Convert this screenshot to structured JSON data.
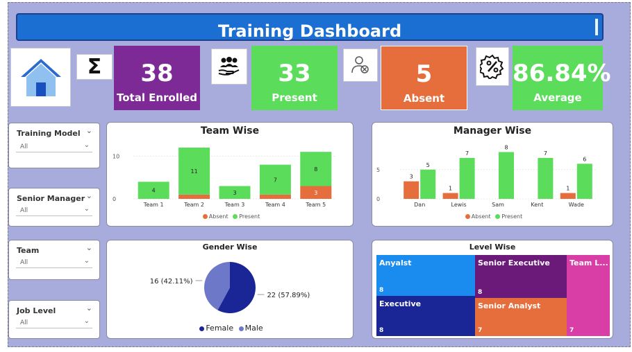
{
  "title": "Training Dashboard",
  "kpis": {
    "enrolled": {
      "value": "38",
      "label": "Total Enrolled",
      "color": "#7d2a96"
    },
    "present": {
      "value": "33",
      "label": "Present",
      "color": "#5bdc5b"
    },
    "absent": {
      "value": "5",
      "label": "Absent",
      "color": "#e66e3c"
    },
    "average": {
      "value": "86.84%",
      "label": "Average",
      "color": "#5bdc5b"
    }
  },
  "icons": {
    "home": "home-icon",
    "sum": "sigma-icon",
    "present": "team-hand-icon",
    "absent": "user-cancel-icon",
    "average": "percent-gear-icon"
  },
  "slicers": [
    {
      "label": "Training Model",
      "value": "All"
    },
    {
      "label": "Senior Manager",
      "value": "All"
    },
    {
      "label": "Team",
      "value": "All"
    },
    {
      "label": "Job Level",
      "value": "All"
    }
  ],
  "legend": {
    "absent": "Absent",
    "present": "Present"
  },
  "colors": {
    "absent": "#e66e3c",
    "present": "#5bdc5b",
    "female": "#1a2596",
    "male": "#6d78c9"
  },
  "chart_data": [
    {
      "type": "bar",
      "title": "Team Wise",
      "categories": [
        "Team 1",
        "Team 2",
        "Team 3",
        "Team 4",
        "Team 5"
      ],
      "series": [
        {
          "name": "Absent",
          "values": [
            0,
            1,
            0,
            1,
            3
          ],
          "labels": [
            "",
            "",
            "",
            "",
            "3"
          ]
        },
        {
          "name": "Present",
          "values": [
            4,
            11,
            3,
            7,
            8
          ],
          "labels": [
            "4",
            "11",
            "3",
            "7",
            "8"
          ]
        }
      ],
      "stacked": true,
      "yticks": [
        "0",
        "10"
      ],
      "ylim": [
        0,
        12
      ],
      "legend": "bottom"
    },
    {
      "type": "bar",
      "title": "Manager Wise",
      "categories": [
        "Dan",
        "Lewis",
        "Sam",
        "Kent",
        "Wade"
      ],
      "series": [
        {
          "name": "Absent",
          "values": [
            3,
            1,
            0,
            0,
            1
          ],
          "labels": [
            "3",
            "1",
            "",
            "",
            "1"
          ]
        },
        {
          "name": "Present",
          "values": [
            5,
            7,
            8,
            7,
            6
          ],
          "labels": [
            "5",
            "7",
            "8",
            "7",
            "6"
          ]
        }
      ],
      "stacked": false,
      "yticks": [
        "0",
        "5"
      ],
      "ylim": [
        0,
        9
      ],
      "legend": "bottom"
    },
    {
      "type": "pie",
      "title": "Gender Wise",
      "slices": [
        {
          "name": "Female",
          "value": 22,
          "label": "22 (57.89%)"
        },
        {
          "name": "Male",
          "value": 16,
          "label": "16 (42.11%)"
        }
      ],
      "legend": "bottom"
    },
    {
      "type": "treemap",
      "title": "Level Wise",
      "items": [
        {
          "name": "Anyalst",
          "value": 8,
          "color": "#1a8cf0"
        },
        {
          "name": "Executive",
          "value": 8,
          "color": "#1a2596"
        },
        {
          "name": "Senior Executive",
          "value": 8,
          "color": "#6b1a7a"
        },
        {
          "name": "Senior Analyst",
          "value": 7,
          "color": "#e66e3c"
        },
        {
          "name": "Team L...",
          "value": 7,
          "color": "#d93ea6"
        }
      ]
    }
  ]
}
